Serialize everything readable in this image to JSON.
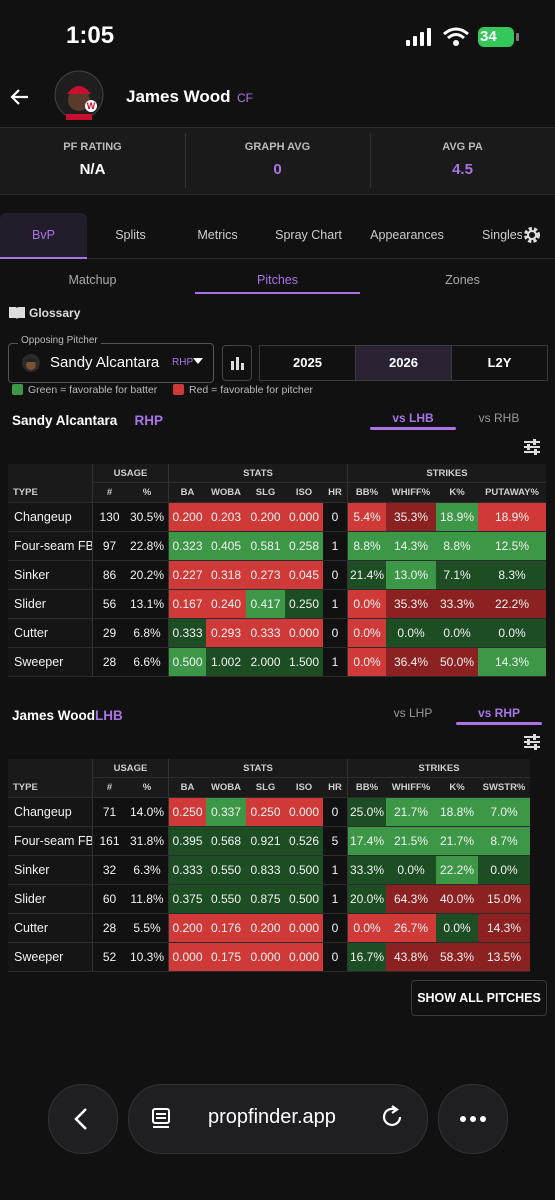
{
  "status": {
    "time": "1:05",
    "battery": "34"
  },
  "header": {
    "name": "James Wood",
    "position": "CF"
  },
  "stats": [
    {
      "label": "PF RATING",
      "value": "N/A"
    },
    {
      "label": "GRAPH AVG",
      "value": "0"
    },
    {
      "label": "AVG PA",
      "value": "4.5"
    }
  ],
  "tabs": {
    "items": [
      "BvP",
      "Splits",
      "Metrics",
      "Spray Chart",
      "Appearances",
      "Singles"
    ],
    "active": 0
  },
  "subtabs": {
    "items": [
      "Matchup",
      "Pitches",
      "Zones"
    ],
    "active": 1
  },
  "glossary": "Glossary",
  "pitcher_select": {
    "label": "Opposing Pitcher",
    "name": "Sandy Alcantara",
    "hand": "RHP"
  },
  "years": {
    "items": [
      "2025",
      "2026",
      "L2Y"
    ],
    "active": 1
  },
  "legend": [
    "Green = favorable for batter",
    "Red = favorable for pitcher"
  ],
  "palette": {
    "r": "#cf3a38",
    "dr": "#8b2121",
    "g": "#3c9846",
    "dg": "#1c4d23"
  },
  "table1": {
    "title_name": "Sandy Alcantara",
    "title_hand": "RHP",
    "toggles": [
      "vs LHB",
      "vs RHB"
    ],
    "active_toggle": 0,
    "groups": [
      "USAGE",
      "STATS",
      "STRIKES"
    ],
    "columns": [
      "TYPE",
      "#",
      "%",
      "BA",
      "WOBA",
      "SLG",
      "ISO",
      "HR",
      "BB%",
      "WHIFF%",
      "K%",
      "PUTAWAY%"
    ],
    "rows": [
      {
        "cells": [
          "Changeup",
          "130",
          "30.5%",
          "0.200",
          "0.203",
          "0.200",
          "0.000",
          "0",
          "5.4%",
          "35.3%",
          "18.9%",
          "18.9%"
        ],
        "colors": [
          null,
          null,
          null,
          "r",
          "r",
          "r",
          "r",
          null,
          "r",
          "dr",
          "g",
          "r"
        ]
      },
      {
        "cells": [
          "Four-seam FB",
          "97",
          "22.8%",
          "0.323",
          "0.405",
          "0.581",
          "0.258",
          "1",
          "8.8%",
          "14.3%",
          "8.8%",
          "12.5%"
        ],
        "colors": [
          null,
          null,
          null,
          "g",
          "g",
          "g",
          "g",
          null,
          "g",
          "g",
          "g",
          "g"
        ]
      },
      {
        "cells": [
          "Sinker",
          "86",
          "20.2%",
          "0.227",
          "0.318",
          "0.273",
          "0.045",
          "0",
          "21.4%",
          "13.0%",
          "7.1%",
          "8.3%"
        ],
        "colors": [
          null,
          null,
          null,
          "r",
          "r",
          "r",
          "r",
          null,
          "dg",
          "g",
          "dg",
          "dg"
        ]
      },
      {
        "cells": [
          "Slider",
          "56",
          "13.1%",
          "0.167",
          "0.240",
          "0.417",
          "0.250",
          "1",
          "0.0%",
          "35.3%",
          "33.3%",
          "22.2%"
        ],
        "colors": [
          null,
          null,
          null,
          "r",
          "r",
          "g",
          "dg",
          null,
          "r",
          "dr",
          "dr",
          "dr"
        ]
      },
      {
        "cells": [
          "Cutter",
          "29",
          "6.8%",
          "0.333",
          "0.293",
          "0.333",
          "0.000",
          "0",
          "0.0%",
          "0.0%",
          "0.0%",
          "0.0%"
        ],
        "colors": [
          null,
          null,
          null,
          "dg",
          "r",
          "r",
          "r",
          null,
          "r",
          "dg",
          "dg",
          "dg"
        ]
      },
      {
        "cells": [
          "Sweeper",
          "28",
          "6.6%",
          "0.500",
          "1.002",
          "2.000",
          "1.500",
          "1",
          "0.0%",
          "36.4%",
          "50.0%",
          "14.3%"
        ],
        "colors": [
          null,
          null,
          null,
          "g",
          "dg",
          "dg",
          "dg",
          null,
          "r",
          "dr",
          "dr",
          "g"
        ]
      }
    ]
  },
  "table2": {
    "title_name": "James Wood",
    "title_hand": "LHB",
    "toggles": [
      "vs LHP",
      "vs RHP"
    ],
    "active_toggle": 1,
    "groups": [
      "USAGE",
      "STATS",
      "STRIKES"
    ],
    "columns": [
      "TYPE",
      "#",
      "%",
      "BA",
      "WOBA",
      "SLG",
      "ISO",
      "HR",
      "BB%",
      "WHIFF%",
      "K%",
      "SWSTR%"
    ],
    "rows": [
      {
        "cells": [
          "Changeup",
          "71",
          "14.0%",
          "0.250",
          "0.337",
          "0.250",
          "0.000",
          "0",
          "25.0%",
          "21.7%",
          "18.8%",
          "7.0%"
        ],
        "colors": [
          null,
          null,
          null,
          "r",
          "g",
          "r",
          "r",
          null,
          "dg",
          "g",
          "g",
          "g"
        ]
      },
      {
        "cells": [
          "Four-seam FB",
          "161",
          "31.8%",
          "0.395",
          "0.568",
          "0.921",
          "0.526",
          "5",
          "17.4%",
          "21.5%",
          "21.7%",
          "8.7%"
        ],
        "colors": [
          null,
          null,
          null,
          "dg",
          "dg",
          "dg",
          "dg",
          null,
          "g",
          "g",
          "g",
          "g"
        ]
      },
      {
        "cells": [
          "Sinker",
          "32",
          "6.3%",
          "0.333",
          "0.550",
          "0.833",
          "0.500",
          "1",
          "33.3%",
          "0.0%",
          "22.2%",
          "0.0%"
        ],
        "colors": [
          null,
          null,
          null,
          "dg",
          "dg",
          "dg",
          "dg",
          null,
          "dg",
          "dg",
          "g",
          "dg"
        ]
      },
      {
        "cells": [
          "Slider",
          "60",
          "11.8%",
          "0.375",
          "0.550",
          "0.875",
          "0.500",
          "1",
          "20.0%",
          "64.3%",
          "40.0%",
          "15.0%"
        ],
        "colors": [
          null,
          null,
          null,
          "dg",
          "dg",
          "dg",
          "dg",
          null,
          "dg",
          "dr",
          "dr",
          "dr"
        ]
      },
      {
        "cells": [
          "Cutter",
          "28",
          "5.5%",
          "0.200",
          "0.176",
          "0.200",
          "0.000",
          "0",
          "0.0%",
          "26.7%",
          "0.0%",
          "14.3%"
        ],
        "colors": [
          null,
          null,
          null,
          "r",
          "r",
          "r",
          "r",
          null,
          "r",
          "r",
          "dg",
          "dr"
        ]
      },
      {
        "cells": [
          "Sweeper",
          "52",
          "10.3%",
          "0.000",
          "0.175",
          "0.000",
          "0.000",
          "0",
          "16.7%",
          "43.8%",
          "58.3%",
          "13.5%"
        ],
        "colors": [
          null,
          null,
          null,
          "r",
          "r",
          "r",
          "r",
          null,
          "dg",
          "dr",
          "dr",
          "dr"
        ]
      }
    ]
  },
  "button": "SHOW ALL PITCHES",
  "browser": {
    "url": "propfinder.app"
  }
}
